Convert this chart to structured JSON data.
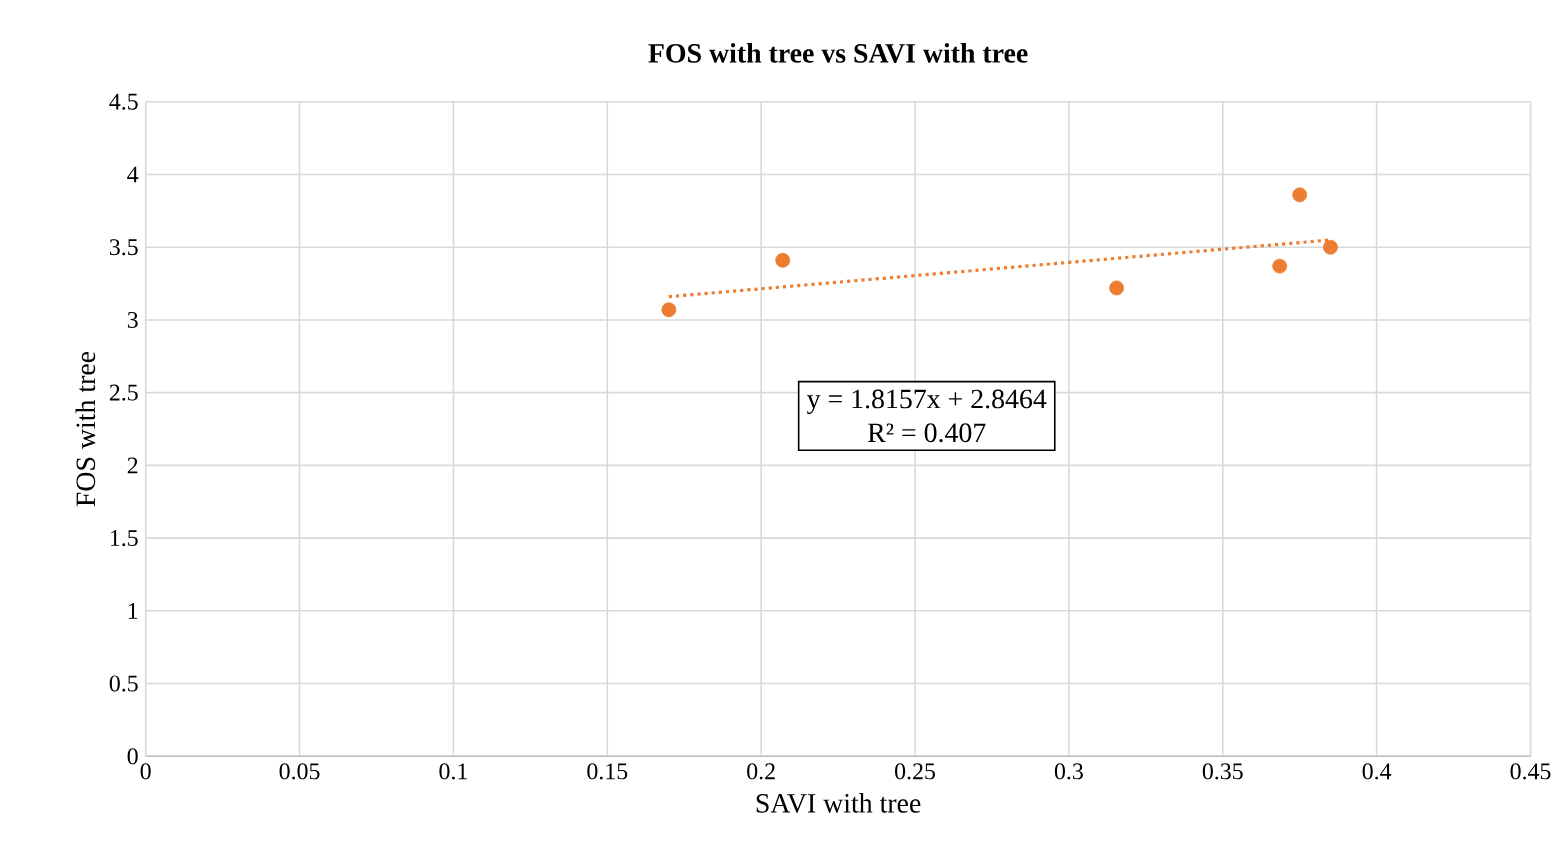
{
  "chart_data": {
    "type": "scatter",
    "title": "FOS with tree vs SAVI with tree",
    "xlabel": "SAVI with tree",
    "ylabel": "FOS with tree",
    "series": [
      {
        "color": "#ed7d31",
        "marker": "circle",
        "x": [
          0.17,
          0.207,
          0.3155,
          0.3685,
          0.375,
          0.385
        ],
        "values": [
          3.07,
          3.41,
          3.22,
          3.37,
          3.86,
          3.5
        ]
      },
      {
        "type": "line",
        "color": "#ed7d31",
        "line_style": "dotted",
        "marker": "none",
        "x": [
          0.17,
          0.385
        ],
        "values": [
          3.16,
          3.55
        ]
      }
    ],
    "annotations": [
      "y = 1.8157x + 2.8464",
      "R² = 0.407"
    ],
    "xlim": [
      0,
      0.45
    ],
    "xticks": [
      0,
      0.05,
      0.1,
      0.15,
      0.2,
      0.25,
      0.3,
      0.35,
      0.4,
      0.45
    ],
    "ylim": [
      0,
      4.5
    ],
    "yticks": [
      0,
      0.5,
      1,
      1.5,
      2,
      2.5,
      3,
      3.5,
      4,
      4.5
    ],
    "grid": true,
    "legend": false
  }
}
